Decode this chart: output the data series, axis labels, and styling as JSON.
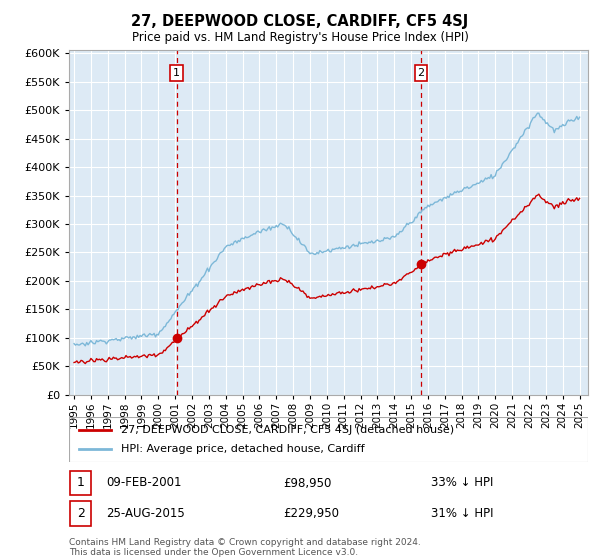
{
  "title": "27, DEEPWOOD CLOSE, CARDIFF, CF5 4SJ",
  "subtitle": "Price paid vs. HM Land Registry's House Price Index (HPI)",
  "hpi_color": "#7db8d8",
  "price_color": "#cc0000",
  "dashed_line_color": "#cc0000",
  "background_color": "#ddeaf5",
  "ylim": [
    0,
    600000
  ],
  "yticks": [
    0,
    50000,
    100000,
    150000,
    200000,
    250000,
    300000,
    350000,
    400000,
    450000,
    500000,
    550000,
    600000
  ],
  "legend_label_red": "27, DEEPWOOD CLOSE, CARDIFF, CF5 4SJ (detached house)",
  "legend_label_blue": "HPI: Average price, detached house, Cardiff",
  "annotation1_label": "1",
  "annotation1_date": "09-FEB-2001",
  "annotation1_price": "£98,950",
  "annotation1_pct": "33% ↓ HPI",
  "annotation2_label": "2",
  "annotation2_date": "25-AUG-2015",
  "annotation2_price": "£229,950",
  "annotation2_pct": "31% ↓ HPI",
  "footer": "Contains HM Land Registry data © Crown copyright and database right 2024.\nThis data is licensed under the Open Government Licence v3.0."
}
